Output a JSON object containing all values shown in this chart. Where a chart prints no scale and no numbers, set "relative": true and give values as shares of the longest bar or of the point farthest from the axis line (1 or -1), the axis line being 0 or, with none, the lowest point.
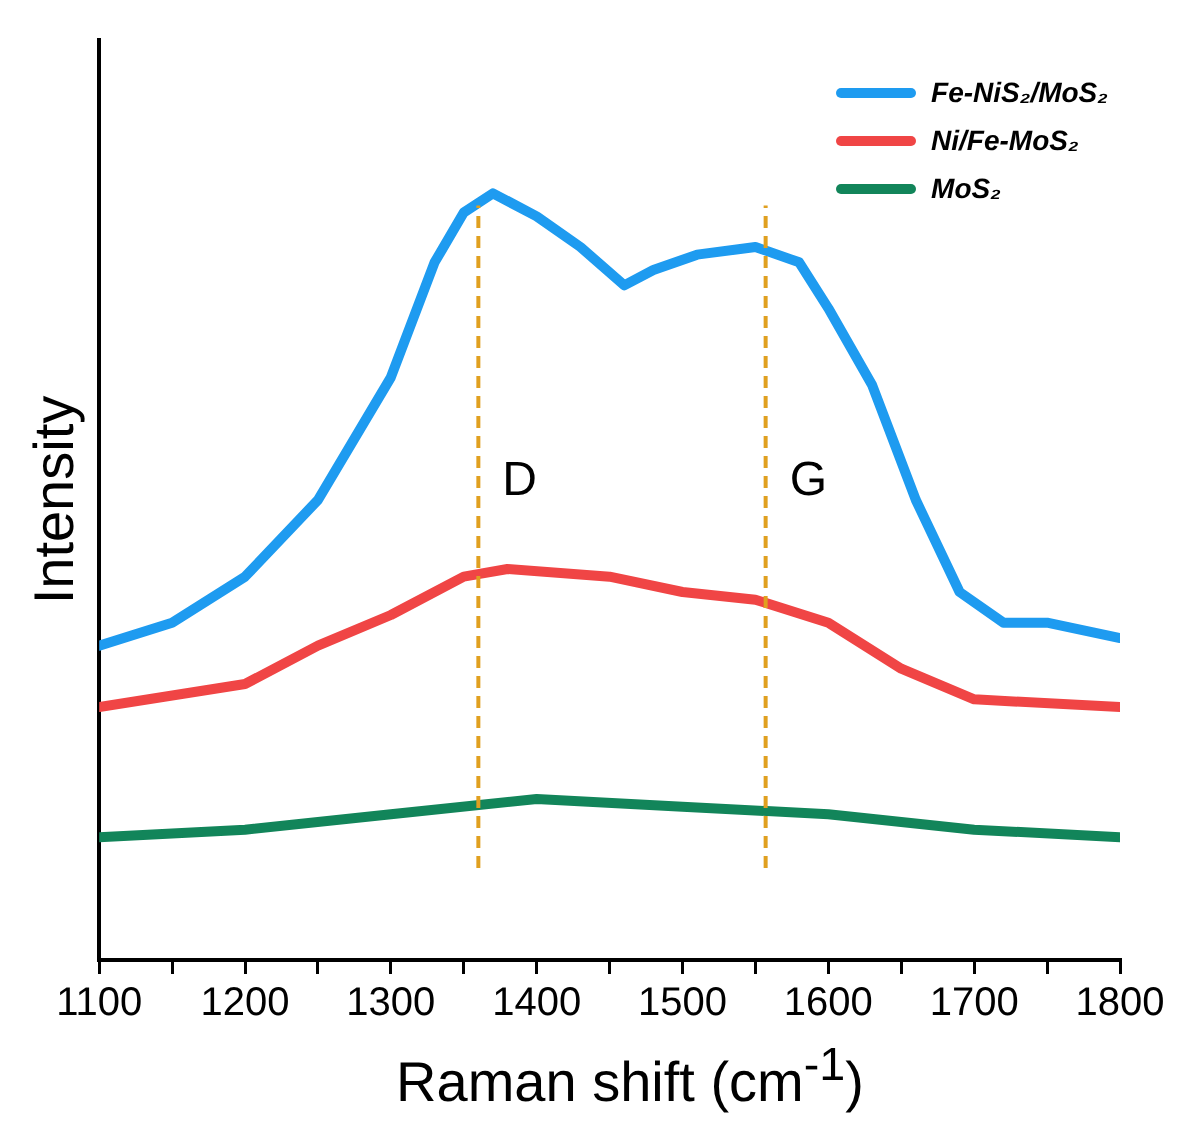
{
  "chart_data": {
    "type": "line",
    "xlabel": "Raman shift (cm$^{-1}$)",
    "ylabel": "Intensity",
    "relative": true,
    "xlim": [
      1100,
      1800
    ],
    "xticks": [
      1100,
      {
        "value": 1150,
        "label": null
      },
      1200,
      {
        "value": 1250,
        "label": null
      },
      1300,
      {
        "value": 1350,
        "label": null
      },
      1400,
      {
        "value": 1450,
        "label": null
      },
      1500,
      {
        "value": 1550,
        "label": null
      },
      1600,
      {
        "value": 1650,
        "label": null
      },
      1700,
      {
        "value": 1750,
        "label": null
      },
      1800
    ],
    "tick_labels": "x",
    "grid": false,
    "legend": "top right",
    "marker": "none",
    "line_style": "solid",
    "ref_lines": [
      {
        "axis": "x",
        "value": 1360,
        "label": "D",
        "color": "#e0a020",
        "line_style": "dashed"
      },
      {
        "axis": "x",
        "value": 1557,
        "label": "G",
        "color": "#e0a020",
        "line_style": "dashed"
      }
    ],
    "series": [
      {
        "name": "Fe-NiS₂/MoS₂",
        "color": "#1e9bf0",
        "x": [
          1100,
          1150,
          1200,
          1250,
          1300,
          1330,
          1350,
          1370,
          1400,
          1430,
          1460,
          1480,
          1510,
          1550,
          1580,
          1600,
          1630,
          1660,
          1690,
          1720,
          1750,
          1800
        ],
        "values": [
          0.41,
          0.44,
          0.5,
          0.6,
          0.76,
          0.91,
          0.975,
          1,
          0.97,
          0.93,
          0.88,
          0.9,
          0.92,
          0.93,
          0.91,
          0.85,
          0.75,
          0.6,
          0.48,
          0.44,
          0.44,
          0.42
        ]
      },
      {
        "name": "Ni/Fe-MoS₂",
        "color": "#f04545",
        "x": [
          1100,
          1200,
          1250,
          1300,
          1350,
          1380,
          1450,
          1500,
          1550,
          1600,
          1650,
          1700,
          1800
        ],
        "values": [
          0.33,
          0.36,
          0.41,
          0.45,
          0.5,
          0.51,
          0.5,
          0.48,
          0.47,
          0.44,
          0.38,
          0.34,
          0.33
        ]
      },
      {
        "name": "MoS₂",
        "color": "#12855a",
        "x": [
          1100,
          1200,
          1300,
          1400,
          1500,
          1600,
          1700,
          1800
        ],
        "values": [
          0.16,
          0.17,
          0.19,
          0.21,
          0.2,
          0.19,
          0.17,
          0.16
        ]
      }
    ]
  }
}
